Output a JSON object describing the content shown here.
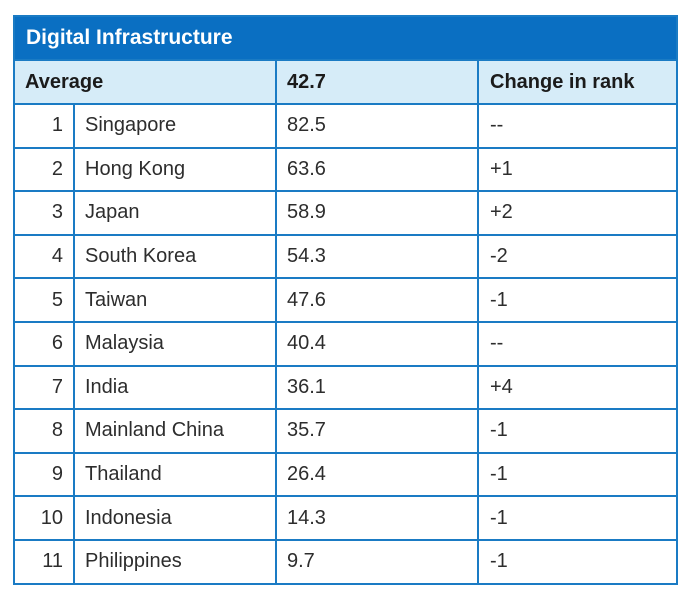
{
  "chart_data": {
    "type": "table",
    "title": "Digital Infrastructure",
    "header": {
      "label": "Average",
      "value": "42.7",
      "change_label": "Change in rank"
    },
    "rows": [
      {
        "rank": "1",
        "country": "Singapore",
        "score": "82.5",
        "change": "--"
      },
      {
        "rank": "2",
        "country": "Hong Kong",
        "score": "63.6",
        "change": "+1"
      },
      {
        "rank": "3",
        "country": "Japan",
        "score": "58.9",
        "change": "+2"
      },
      {
        "rank": "4",
        "country": "South Korea",
        "score": "54.3",
        "change": "-2"
      },
      {
        "rank": "5",
        "country": "Taiwan",
        "score": "47.6",
        "change": "-1"
      },
      {
        "rank": "6",
        "country": "Malaysia",
        "score": "40.4",
        "change": "--"
      },
      {
        "rank": "7",
        "country": "India",
        "score": "36.1",
        "change": "+4"
      },
      {
        "rank": "8",
        "country": "Mainland China",
        "score": "35.7",
        "change": "-1"
      },
      {
        "rank": "9",
        "country": "Thailand",
        "score": "26.4",
        "change": "-1"
      },
      {
        "rank": "10",
        "country": "Indonesia",
        "score": "14.3",
        "change": "-1"
      },
      {
        "rank": "11",
        "country": "Philippines",
        "score": "9.7",
        "change": "-1"
      }
    ]
  },
  "colors": {
    "title_bg": "#0a6fc2",
    "header_bg": "#d6ecf8",
    "border": "#1a7bc4"
  }
}
